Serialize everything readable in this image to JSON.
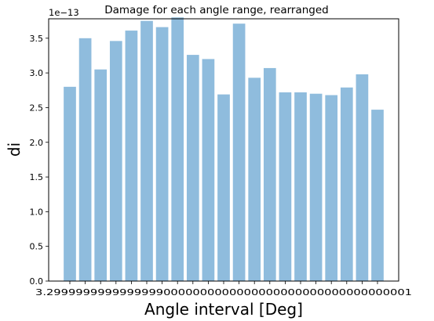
{
  "chart_data": {
    "type": "bar",
    "title": "Damage for each angle range, rearranged",
    "xlabel": "Angle interval [Deg]",
    "ylabel": "di",
    "y_multiplier_label": "1e−13",
    "ylim": [
      0,
      3.78
    ],
    "y_ticks": [
      0.0,
      0.5,
      1.0,
      1.5,
      2.0,
      2.5,
      3.0,
      3.5
    ],
    "y_tick_labels": [
      "0.0",
      "0.5",
      "1.0",
      "1.5",
      "2.0",
      "2.5",
      "3.0",
      "3.5"
    ],
    "x_tick_labels_overlapping": "3.29999999999999990000000000000000000000000000000001",
    "values": [
      2.8,
      3.5,
      3.05,
      3.46,
      3.61,
      3.75,
      3.66,
      3.8,
      3.26,
      3.2,
      2.69,
      3.71,
      2.93,
      3.07,
      2.72,
      2.72,
      2.7,
      2.68,
      2.79,
      2.98,
      2.47
    ],
    "bar_color": "#8fbcdd",
    "grid": false
  }
}
